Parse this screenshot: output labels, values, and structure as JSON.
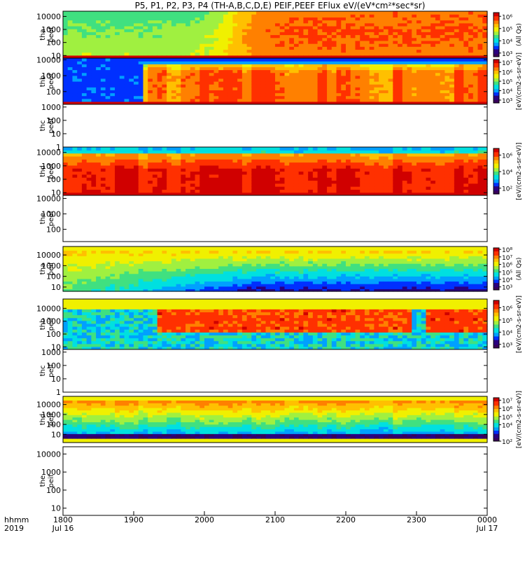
{
  "chart_data": {
    "type": "heatmap",
    "title": "P5, P1, P2, P3, P4 (TH-A,B,C,D,E) PEIF,PEEF EFlux eV/(eV*cm²*sec*sr)",
    "x_axis": {
      "label_line1": "hhmm",
      "label_line2": "2019",
      "range_hhmm": [
        "1800",
        "0000"
      ],
      "ticks": [
        {
          "label": "1800",
          "sub": "Jul 16",
          "hours": 0
        },
        {
          "label": "1900",
          "sub": "",
          "hours": 1
        },
        {
          "label": "2000",
          "sub": "",
          "hours": 2
        },
        {
          "label": "2100",
          "sub": "",
          "hours": 3
        },
        {
          "label": "2200",
          "sub": "",
          "hours": 4
        },
        {
          "label": "2300",
          "sub": "",
          "hours": 5
        },
        {
          "label": "0000",
          "sub": "Jul 17",
          "hours": 6
        }
      ]
    },
    "panels": [
      {
        "probe": "tha",
        "product": "peef",
        "ylabel": [
          "tha",
          "peef"
        ],
        "yticks": [
          "10",
          "100",
          "1000",
          "10000"
        ],
        "ylog": [
          0.8,
          4.4
        ],
        "has_data": true,
        "colorbar": {
          "label": "(All Qs)",
          "ticks": [
            "10³",
            "10⁴",
            "10⁵",
            "10⁶"
          ],
          "cmin": 2.7,
          "cmax": 6.3
        },
        "pattern": "tha_e"
      },
      {
        "probe": "thb",
        "product": "peef",
        "ylabel": [
          "thb",
          "peef"
        ],
        "yticks": [
          "100",
          "1000",
          "10000"
        ],
        "ylog": [
          1.2,
          4.1
        ],
        "has_data": true,
        "colorbar": {
          "label": "[eV/(cm2-s-sr-eV)]",
          "ticks": [
            "10³",
            "10⁴",
            "10⁵",
            "10⁶",
            "10⁷"
          ],
          "cmin": 2.7,
          "cmax": 7.3
        },
        "pattern": "thb_e"
      },
      {
        "probe": "thc",
        "product": "peef",
        "ylabel": [
          "thc",
          "peef"
        ],
        "yticks": [
          "1",
          "10",
          "100",
          "1000"
        ],
        "ylog": [
          0.0,
          3.2
        ],
        "has_data": false,
        "colorbar": null,
        "pattern": "empty"
      },
      {
        "probe": "thd",
        "product": "peef",
        "ylabel": [
          "thd",
          "peef"
        ],
        "yticks": [
          "10",
          "100",
          "1000",
          "10000"
        ],
        "ylog": [
          0.8,
          4.4
        ],
        "has_data": true,
        "colorbar": {
          "label": "[eV/(cm2-s-sr-eV)]",
          "ticks": [
            "10²",
            "10⁴",
            "10⁶"
          ],
          "cmin": 1.3,
          "cmax": 6.8
        },
        "pattern": "thd_e"
      },
      {
        "probe": "the",
        "product": "peef",
        "ylabel": [
          "the",
          "peef"
        ],
        "yticks": [
          "100",
          "1000",
          "10000"
        ],
        "ylog": [
          1.2,
          4.2
        ],
        "has_data": false,
        "colorbar": null,
        "pattern": "empty"
      },
      {
        "probe": "tha",
        "product": "peif",
        "ylabel": [
          "tha",
          "peif"
        ],
        "yticks": [
          "10",
          "100",
          "1000",
          "10000"
        ],
        "ylog": [
          0.6,
          4.4
        ],
        "has_data": true,
        "colorbar": {
          "label": "(All Qs)",
          "ticks": [
            "10³",
            "10⁴",
            "10⁵",
            "10⁶",
            "10⁷",
            "10⁸"
          ],
          "cmin": 2.6,
          "cmax": 8.2
        },
        "pattern": "tha_i"
      },
      {
        "probe": "thb",
        "product": "peif",
        "ylabel": [
          "thb",
          "peif"
        ],
        "yticks": [
          "10",
          "100",
          "1000",
          "10000"
        ],
        "ylog": [
          0.8,
          4.4
        ],
        "has_data": true,
        "colorbar": {
          "label": "[eV/(cm2-s-sr-eV)]",
          "ticks": [
            "10³",
            "10⁴",
            "10⁵",
            "10⁶"
          ],
          "cmin": 2.7,
          "cmax": 6.6
        },
        "pattern": "thb_i"
      },
      {
        "probe": "thc",
        "product": "peif",
        "ylabel": [
          "thc",
          "peif"
        ],
        "yticks": [
          "1",
          "10",
          "100",
          "1000"
        ],
        "ylog": [
          0.0,
          3.2
        ],
        "has_data": false,
        "colorbar": null,
        "pattern": "empty"
      },
      {
        "probe": "thd",
        "product": "peif",
        "ylabel": [
          "thd",
          "peif"
        ],
        "yticks": [
          "10",
          "100",
          "1000",
          "10000"
        ],
        "ylog": [
          0.6,
          4.4
        ],
        "has_data": true,
        "colorbar": {
          "label": "[eV/(cm2-s-sr-eV)]",
          "ticks": [
            "10²",
            "10⁴",
            "10⁵",
            "10⁶",
            "10⁷"
          ],
          "cmin": 2.0,
          "cmax": 7.3
        },
        "pattern": "thd_i"
      },
      {
        "probe": "the",
        "product": "peif",
        "ylabel": [
          "the",
          "peif"
        ],
        "yticks": [
          "10",
          "100",
          "1000",
          "10000"
        ],
        "ylog": [
          0.6,
          4.4
        ],
        "has_data": false,
        "colorbar": null,
        "pattern": "empty"
      }
    ],
    "colorscale": [
      "#38005a",
      "#2a0080",
      "#0030ff",
      "#00a0ff",
      "#00e0e0",
      "#40e080",
      "#a0f040",
      "#f0f000",
      "#ffc000",
      "#ff8000",
      "#ff3000",
      "#d00000"
    ],
    "grid": false
  }
}
